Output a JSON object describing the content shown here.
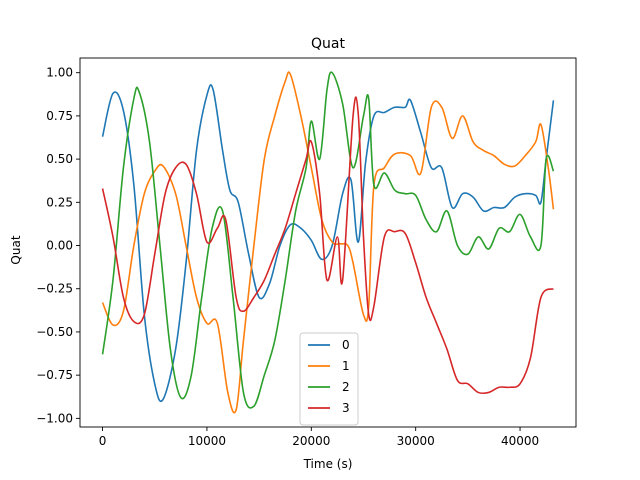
{
  "chart_data": {
    "type": "line",
    "title": "Quat",
    "xlabel": "Time (s)",
    "ylabel": "Quat",
    "xlim": [
      -2160,
      45360
    ],
    "ylim": [
      -1.05,
      1.085
    ],
    "xticks": [
      0,
      10000,
      20000,
      30000,
      40000
    ],
    "xtick_labels": [
      "0",
      "10000",
      "20000",
      "30000",
      "40000"
    ],
    "yticks": [
      -1.0,
      -0.75,
      -0.5,
      -0.25,
      0.0,
      0.25,
      0.5,
      0.75,
      1.0
    ],
    "ytick_labels": [
      "−1.00",
      "−0.75",
      "−0.50",
      "−0.25",
      "0.00",
      "0.25",
      "0.50",
      "0.75",
      "1.00"
    ],
    "grid": false,
    "legend_position": "lower center",
    "series": [
      {
        "name": "0",
        "color": "#1f77b4",
        "points": [
          [
            0,
            0.63
          ],
          [
            1000,
            0.88
          ],
          [
            2000,
            0.78
          ],
          [
            3000,
            0.35
          ],
          [
            4000,
            -0.4
          ],
          [
            5000,
            -0.8
          ],
          [
            5800,
            -0.89
          ],
          [
            7000,
            -0.6
          ],
          [
            8000,
            -0.1
          ],
          [
            9000,
            0.55
          ],
          [
            10000,
            0.87
          ],
          [
            10600,
            0.9
          ],
          [
            11500,
            0.55
          ],
          [
            12200,
            0.32
          ],
          [
            13000,
            0.25
          ],
          [
            14000,
            -0.05
          ],
          [
            15000,
            -0.3
          ],
          [
            16000,
            -0.22
          ],
          [
            17000,
            0.0
          ],
          [
            18000,
            0.12
          ],
          [
            19000,
            0.1
          ],
          [
            20000,
            0.03
          ],
          [
            21000,
            -0.08
          ],
          [
            22000,
            0.0
          ],
          [
            23000,
            0.3
          ],
          [
            23800,
            0.38
          ],
          [
            24500,
            0.02
          ],
          [
            25200,
            0.48
          ],
          [
            26000,
            0.75
          ],
          [
            27000,
            0.77
          ],
          [
            28000,
            0.8
          ],
          [
            29000,
            0.8
          ],
          [
            29500,
            0.84
          ],
          [
            30500,
            0.65
          ],
          [
            31500,
            0.45
          ],
          [
            32500,
            0.45
          ],
          [
            33500,
            0.22
          ],
          [
            34500,
            0.3
          ],
          [
            35500,
            0.28
          ],
          [
            36500,
            0.2
          ],
          [
            37500,
            0.22
          ],
          [
            38500,
            0.22
          ],
          [
            39500,
            0.28
          ],
          [
            40500,
            0.3
          ],
          [
            41500,
            0.29
          ],
          [
            42000,
            0.25
          ],
          [
            42500,
            0.5
          ],
          [
            43200,
            0.84
          ]
        ]
      },
      {
        "name": "1",
        "color": "#ff7f0e",
        "points": [
          [
            0,
            -0.33
          ],
          [
            1000,
            -0.46
          ],
          [
            2000,
            -0.38
          ],
          [
            3000,
            0.0
          ],
          [
            4000,
            0.3
          ],
          [
            5000,
            0.43
          ],
          [
            5800,
            0.46
          ],
          [
            7000,
            0.3
          ],
          [
            8000,
            0.0
          ],
          [
            9000,
            -0.3
          ],
          [
            10000,
            -0.45
          ],
          [
            11000,
            -0.45
          ],
          [
            12000,
            -0.85
          ],
          [
            12800,
            -0.95
          ],
          [
            13500,
            -0.55
          ],
          [
            14500,
            0.0
          ],
          [
            15500,
            0.5
          ],
          [
            16500,
            0.75
          ],
          [
            17500,
            0.95
          ],
          [
            18000,
            0.99
          ],
          [
            19000,
            0.75
          ],
          [
            20000,
            0.45
          ],
          [
            21000,
            0.15
          ],
          [
            22000,
            0.02
          ],
          [
            22800,
            0.01
          ],
          [
            23500,
            0.0
          ],
          [
            24000,
            -0.1
          ],
          [
            25000,
            -0.4
          ],
          [
            25500,
            -0.35
          ],
          [
            26000,
            0.35
          ],
          [
            27000,
            0.45
          ],
          [
            28000,
            0.53
          ],
          [
            29500,
            0.52
          ],
          [
            30500,
            0.42
          ],
          [
            31500,
            0.8
          ],
          [
            32500,
            0.8
          ],
          [
            33500,
            0.62
          ],
          [
            34500,
            0.75
          ],
          [
            35500,
            0.6
          ],
          [
            36500,
            0.55
          ],
          [
            37500,
            0.52
          ],
          [
            38500,
            0.47
          ],
          [
            39500,
            0.46
          ],
          [
            40500,
            0.52
          ],
          [
            41500,
            0.6
          ],
          [
            42000,
            0.7
          ],
          [
            42700,
            0.45
          ],
          [
            43200,
            0.21
          ]
        ]
      },
      {
        "name": "2",
        "color": "#2ca02c",
        "points": [
          [
            0,
            -0.63
          ],
          [
            1000,
            -0.2
          ],
          [
            2000,
            0.45
          ],
          [
            3000,
            0.85
          ],
          [
            3500,
            0.89
          ],
          [
            4500,
            0.6
          ],
          [
            5500,
            0.0
          ],
          [
            6500,
            -0.6
          ],
          [
            7500,
            -0.88
          ],
          [
            8500,
            -0.75
          ],
          [
            9500,
            -0.3
          ],
          [
            10500,
            0.1
          ],
          [
            11500,
            0.2
          ],
          [
            12500,
            -0.3
          ],
          [
            13500,
            -0.85
          ],
          [
            14500,
            -0.93
          ],
          [
            15500,
            -0.75
          ],
          [
            16500,
            -0.55
          ],
          [
            17500,
            -0.2
          ],
          [
            18500,
            0.2
          ],
          [
            19500,
            0.45
          ],
          [
            20000,
            0.72
          ],
          [
            20800,
            0.5
          ],
          [
            21500,
            0.9
          ],
          [
            22000,
            1.0
          ],
          [
            23000,
            0.82
          ],
          [
            24000,
            0.45
          ],
          [
            25000,
            0.75
          ],
          [
            25500,
            0.85
          ],
          [
            26000,
            0.35
          ],
          [
            27000,
            0.42
          ],
          [
            28000,
            0.32
          ],
          [
            29000,
            0.3
          ],
          [
            30000,
            0.29
          ],
          [
            31000,
            0.15
          ],
          [
            32000,
            0.08
          ],
          [
            33000,
            0.2
          ],
          [
            34000,
            0.0
          ],
          [
            35000,
            -0.05
          ],
          [
            36000,
            0.05
          ],
          [
            37000,
            -0.02
          ],
          [
            38000,
            0.1
          ],
          [
            39000,
            0.08
          ],
          [
            40000,
            0.18
          ],
          [
            41000,
            0.05
          ],
          [
            42000,
            0.0
          ],
          [
            42500,
            0.5
          ],
          [
            43200,
            0.43
          ]
        ]
      },
      {
        "name": "3",
        "color": "#d62728",
        "points": [
          [
            0,
            0.33
          ],
          [
            1000,
            0.05
          ],
          [
            2000,
            -0.3
          ],
          [
            3000,
            -0.44
          ],
          [
            4000,
            -0.4
          ],
          [
            5000,
            -0.05
          ],
          [
            6000,
            0.3
          ],
          [
            7000,
            0.45
          ],
          [
            8000,
            0.47
          ],
          [
            9000,
            0.3
          ],
          [
            10000,
            0.02
          ],
          [
            11000,
            0.1
          ],
          [
            11800,
            0.15
          ],
          [
            12800,
            -0.3
          ],
          [
            13500,
            -0.38
          ],
          [
            14500,
            -0.3
          ],
          [
            15500,
            -0.2
          ],
          [
            16500,
            -0.05
          ],
          [
            17500,
            0.1
          ],
          [
            18500,
            0.3
          ],
          [
            19500,
            0.5
          ],
          [
            20000,
            0.6
          ],
          [
            20800,
            0.3
          ],
          [
            21500,
            -0.2
          ],
          [
            22500,
            0.05
          ],
          [
            23000,
            -0.2
          ],
          [
            24000,
            0.75
          ],
          [
            24500,
            0.76
          ],
          [
            25000,
            0.05
          ],
          [
            25500,
            -0.4
          ],
          [
            26000,
            -0.35
          ],
          [
            27000,
            0.05
          ],
          [
            28000,
            0.08
          ],
          [
            29000,
            0.07
          ],
          [
            30000,
            -0.1
          ],
          [
            31000,
            -0.3
          ],
          [
            32000,
            -0.45
          ],
          [
            33000,
            -0.6
          ],
          [
            34000,
            -0.78
          ],
          [
            35000,
            -0.8
          ],
          [
            36000,
            -0.85
          ],
          [
            37000,
            -0.85
          ],
          [
            38000,
            -0.82
          ],
          [
            39000,
            -0.82
          ],
          [
            40000,
            -0.8
          ],
          [
            41000,
            -0.65
          ],
          [
            42000,
            -0.3
          ],
          [
            43200,
            -0.25
          ]
        ]
      }
    ]
  }
}
